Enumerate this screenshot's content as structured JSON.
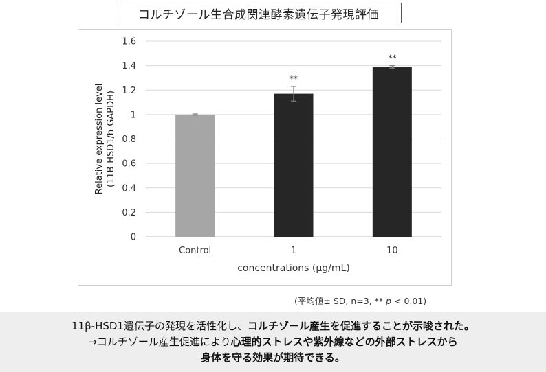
{
  "title": "コルチゾール生合成関連酵素遺伝子発現評価",
  "chart_data": {
    "type": "bar",
    "categories": [
      "Control",
      "1",
      "10"
    ],
    "values": [
      1.0,
      1.17,
      1.39
    ],
    "error": [
      0.005,
      0.06,
      0.01
    ],
    "significance": [
      "",
      "**",
      "**"
    ],
    "bar_colors": [
      "#a6a6a6",
      "#262626",
      "#262626"
    ],
    "xlabel": "concentrations (μg/mL)",
    "ylabel_line1": "Relative expression level",
    "ylabel_line2": "(11B-HSD1/h-GAPDH)",
    "ylim": [
      0,
      1.6
    ],
    "yticks": [
      0,
      0.2,
      0.4,
      0.6,
      0.8,
      1,
      1.2,
      1.4,
      1.6
    ],
    "ytick_labels": [
      "0",
      "0.2",
      "0.4",
      "0.6",
      "0.8",
      "1",
      "1.2",
      "1.4",
      "1.6"
    ],
    "grid": true,
    "gridline_color": "#d9d9d9"
  },
  "note": {
    "prefix": "(平均値± SD, n=3, ** ",
    "p": "p",
    "suffix": " < 0.01)"
  },
  "summary": {
    "line1_normal": "11β-HSD1遺伝子の発現を活性化し、",
    "line1_bold": "コルチゾール産生を促進することが示唆された。",
    "line2_normal": "→コルチゾール産生促進により",
    "line2_bold": "心理的ストレスや紫外線などの外部ストレスから",
    "line3_bold": "身体を守る効果が期待できる。"
  }
}
